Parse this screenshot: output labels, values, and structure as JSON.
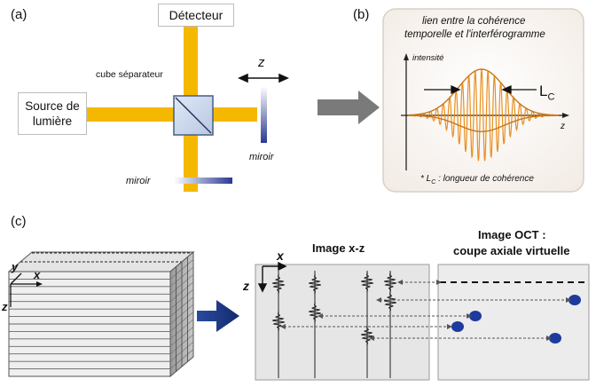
{
  "panel_a": {
    "label": "(a)",
    "detector": "Détecteur",
    "source_line1": "Source de",
    "source_line2": "lumière",
    "beamsplitter": "cube séparateur",
    "axis_z": "z",
    "mirror_right": "miroir",
    "mirror_bottom": "miroir"
  },
  "panel_b": {
    "label": "(b)",
    "title_line1": "lien entre la cohérence",
    "title_line2": "temporelle et l'interférogramme",
    "y_axis": "intensité",
    "x_axis": "z",
    "lc_label": "L",
    "lc_sub": "C",
    "footnote_prefix": "* L",
    "footnote_sub": "C",
    "footnote_text": " : longueur de cohérence"
  },
  "panel_c": {
    "label": "(c)",
    "axis_y": "y",
    "axis_x": "x",
    "axis_z": "z",
    "image_xz_title": "Image x-z",
    "xz_axis_x": "x",
    "xz_axis_z": "z",
    "oct_title_line1": "Image OCT :",
    "oct_title_line2": "coupe axiale virtuelle"
  },
  "colors": {
    "beam": "#f5b800",
    "mirror": "#2b3990",
    "fringe": "#e8901e",
    "dot": "#1d3a9e",
    "arrow_gray": "#7a7a7a"
  }
}
